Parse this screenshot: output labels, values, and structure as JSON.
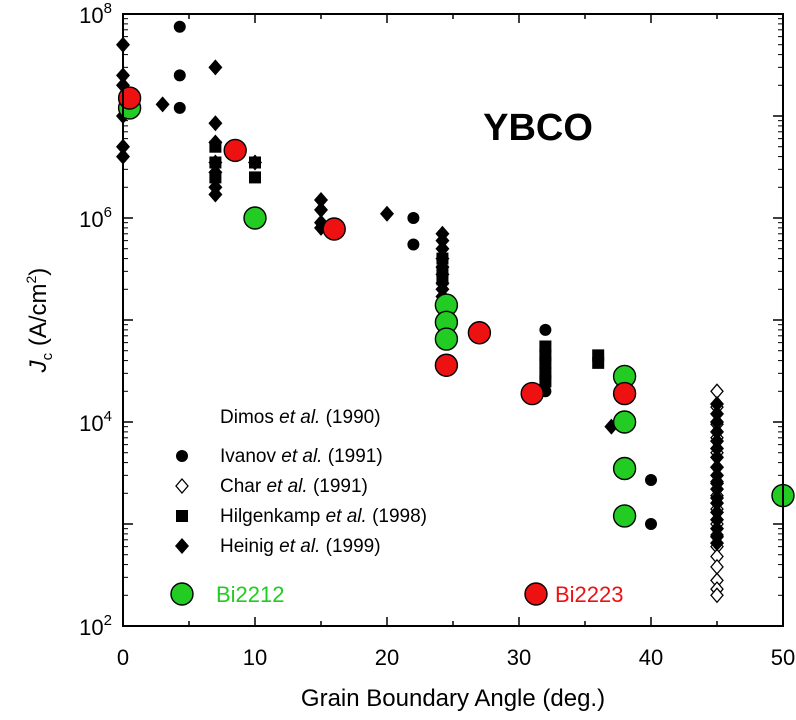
{
  "chart_data": {
    "type": "scatter",
    "title": "YBCO",
    "xlabel": "Grain Boundary Angle (deg.)",
    "ylabel_main": "J",
    "ylabel_sub": "c",
    "ylabel_unit": " (A/cm",
    "ylabel_sup": "2",
    "ylabel_close": ")",
    "xlim": [
      0,
      50
    ],
    "ylim": [
      100,
      100000000
    ],
    "yscale": "log",
    "x_ticks": [
      "0",
      "10",
      "20",
      "30",
      "40",
      "50"
    ],
    "y_ticks": [
      {
        "base": "10",
        "exp": "2",
        "value": 100
      },
      {
        "base": "10",
        "exp": "4",
        "value": 10000
      },
      {
        "base": "10",
        "exp": "6",
        "value": 1000000
      },
      {
        "base": "10",
        "exp": "8",
        "value": 100000000
      }
    ],
    "legend_header": {
      "pre": "Dimos ",
      "em": "et al.",
      "post": " (1990)"
    },
    "legend": [
      {
        "key": "ivanov",
        "marker": "circle",
        "pre": "Ivanov ",
        "em": "et al.",
        "post": " (1991)"
      },
      {
        "key": "char",
        "marker": "diamond-open",
        "pre": "Char ",
        "em": "et al.",
        "post": " (1991)"
      },
      {
        "key": "hilgenkamp",
        "marker": "square",
        "pre": "Hilgenkamp ",
        "em": "et al.",
        "post": " (1998)"
      },
      {
        "key": "heinig",
        "marker": "diamond",
        "pre": "Heinig ",
        "em": "et al.",
        "post": " (1999)"
      }
    ],
    "colors": {
      "bi2212": "#22cc22",
      "bi2223": "#ee1111",
      "black": "#000000"
    },
    "series": [
      {
        "name": "Ivanov et al. (1991)",
        "marker": "circle",
        "points": [
          [
            4.3,
            75000000
          ],
          [
            4.3,
            25000000
          ],
          [
            4.3,
            12000000
          ],
          [
            22,
            1000000
          ],
          [
            22,
            550000
          ],
          [
            32,
            80000
          ],
          [
            32,
            20000
          ],
          [
            40,
            2700
          ],
          [
            40,
            1000
          ]
        ]
      },
      {
        "name": "Char et al. (1991)",
        "marker": "diamond-open",
        "points": [
          [
            45,
            20000
          ],
          [
            45,
            14000
          ],
          [
            45,
            9500
          ],
          [
            45,
            7000
          ],
          [
            45,
            5000
          ],
          [
            45,
            3600
          ],
          [
            45,
            2600
          ],
          [
            45,
            1900
          ],
          [
            45,
            1400
          ],
          [
            45,
            1000
          ],
          [
            45,
            780
          ],
          [
            45,
            600
          ],
          [
            45,
            480
          ],
          [
            45,
            380
          ],
          [
            45,
            280
          ],
          [
            45,
            230
          ],
          [
            45,
            200
          ]
        ]
      },
      {
        "name": "Hilgenkamp et al. (1998)",
        "marker": "square",
        "points": [
          [
            7,
            5000000
          ],
          [
            7,
            3500000
          ],
          [
            7,
            2500000
          ],
          [
            10,
            3500000
          ],
          [
            10,
            2500000
          ],
          [
            24.2,
            400000
          ],
          [
            24.2,
            300000
          ],
          [
            24.2,
            250000
          ],
          [
            32,
            55000
          ],
          [
            32,
            45000
          ],
          [
            32,
            38000
          ],
          [
            32,
            30000
          ],
          [
            32,
            25000
          ],
          [
            36,
            45000
          ],
          [
            36,
            38000
          ]
        ]
      },
      {
        "name": "Heinig et al. (1999)",
        "marker": "diamond",
        "points": [
          [
            0,
            50000000
          ],
          [
            0,
            25000000
          ],
          [
            0,
            20000000
          ],
          [
            0,
            10000000
          ],
          [
            0,
            5000000
          ],
          [
            0,
            4000000
          ],
          [
            3,
            13000000
          ],
          [
            7,
            30000000
          ],
          [
            7,
            8500000
          ],
          [
            7,
            5500000
          ],
          [
            7,
            3500000
          ],
          [
            7,
            2800000
          ],
          [
            7,
            2000000
          ],
          [
            7,
            1700000
          ],
          [
            10,
            3500000
          ],
          [
            15,
            1500000
          ],
          [
            15,
            1200000
          ],
          [
            15,
            900000
          ],
          [
            15,
            800000
          ],
          [
            20,
            1100000
          ],
          [
            24.2,
            700000
          ],
          [
            24.2,
            600000
          ],
          [
            24.2,
            500000
          ],
          [
            24.2,
            400000
          ],
          [
            24.2,
            330000
          ],
          [
            24.2,
            280000
          ],
          [
            24.2,
            230000
          ],
          [
            24.2,
            200000
          ],
          [
            24.2,
            170000
          ],
          [
            24.2,
            140000
          ],
          [
            37,
            9000
          ],
          [
            45,
            15000
          ],
          [
            45,
            12000
          ],
          [
            45,
            10000
          ],
          [
            45,
            8000
          ],
          [
            45,
            6500
          ],
          [
            45,
            5500
          ],
          [
            45,
            4500
          ],
          [
            45,
            3600
          ],
          [
            45,
            3000
          ],
          [
            45,
            2500
          ],
          [
            45,
            2200
          ],
          [
            45,
            1800
          ],
          [
            45,
            1600
          ],
          [
            45,
            1300
          ],
          [
            45,
            1100
          ],
          [
            45,
            900
          ],
          [
            45,
            750
          ],
          [
            45,
            650
          ]
        ]
      },
      {
        "name": "Bi2212",
        "marker": "circle-color",
        "color": "#22cc22",
        "points": [
          [
            0.5,
            12000000
          ],
          [
            10,
            1000000
          ],
          [
            24.5,
            140000
          ],
          [
            24.5,
            95000
          ],
          [
            24.5,
            65000
          ],
          [
            38,
            28000
          ],
          [
            38,
            10000
          ],
          [
            38,
            3500
          ],
          [
            38,
            1200
          ],
          [
            50,
            1900
          ]
        ]
      },
      {
        "name": "Bi2223",
        "marker": "circle-color",
        "color": "#ee1111",
        "points": [
          [
            0.5,
            15000000
          ],
          [
            8.5,
            4600000
          ],
          [
            16,
            780000
          ],
          [
            24.5,
            36000
          ],
          [
            27,
            75000
          ],
          [
            31,
            19000
          ],
          [
            38,
            19000
          ]
        ]
      }
    ],
    "colored_legend": [
      {
        "label": "Bi2212",
        "color": "#22cc22"
      },
      {
        "label": "Bi2223",
        "color": "#ee1111"
      }
    ]
  }
}
